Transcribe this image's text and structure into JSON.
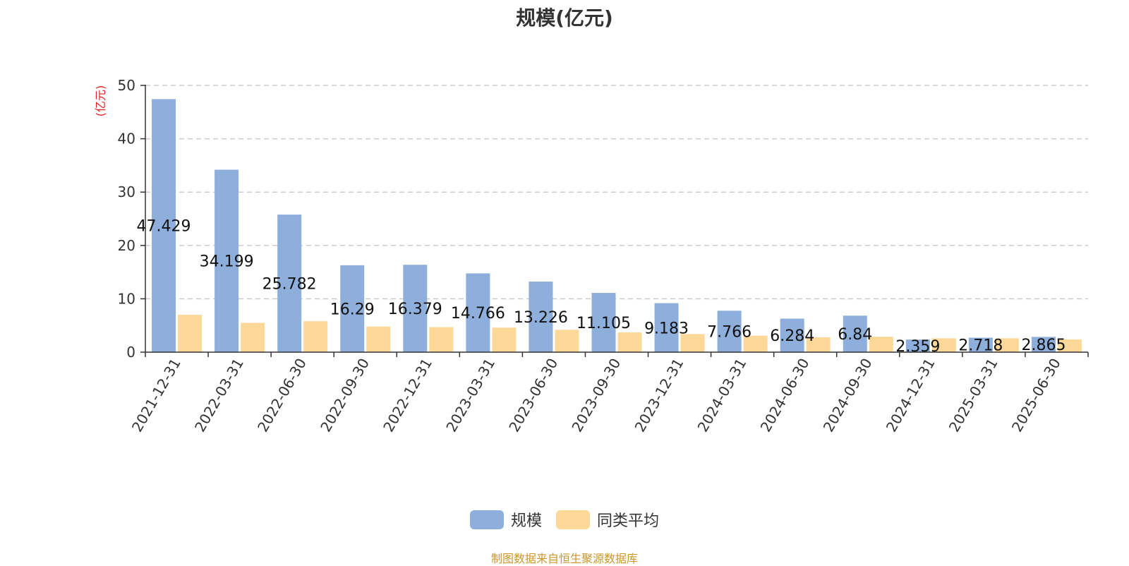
{
  "chart_data": {
    "type": "bar",
    "title": "规模(亿元)",
    "ylabel": "(亿元)",
    "ylim": [
      0,
      50
    ],
    "yticks": [
      0,
      10,
      20,
      30,
      40,
      50
    ],
    "grid": true,
    "legend_position": "bottom-center",
    "categories": [
      "2021-12-31",
      "2022-03-31",
      "2022-06-30",
      "2022-09-30",
      "2022-12-31",
      "2023-03-31",
      "2023-06-30",
      "2023-09-30",
      "2023-12-31",
      "2024-03-31",
      "2024-06-30",
      "2024-09-30",
      "2024-12-31",
      "2025-03-31",
      "2025-06-30"
    ],
    "series": [
      {
        "name": "规模",
        "color": "#8eaedb",
        "values": [
          47.429,
          34.199,
          25.782,
          16.29,
          16.379,
          14.766,
          13.226,
          11.105,
          9.183,
          7.766,
          6.284,
          6.84,
          2.359,
          2.718,
          2.865
        ],
        "labels": [
          "47.429",
          "34.199",
          "25.782",
          "16.29",
          "16.379",
          "14.766",
          "13.226",
          "11.105",
          "9.183",
          "7.766",
          "6.284",
          "6.84",
          "2.359",
          "2.718",
          "2.865"
        ]
      },
      {
        "name": "同类平均",
        "color": "#fdd898",
        "values": [
          7.0,
          5.5,
          5.8,
          4.8,
          4.7,
          4.6,
          4.2,
          3.7,
          3.4,
          3.1,
          2.8,
          2.9,
          2.6,
          2.6,
          2.4
        ]
      }
    ]
  },
  "footer": {
    "source": "制图数据来自恒生聚源数据库"
  }
}
